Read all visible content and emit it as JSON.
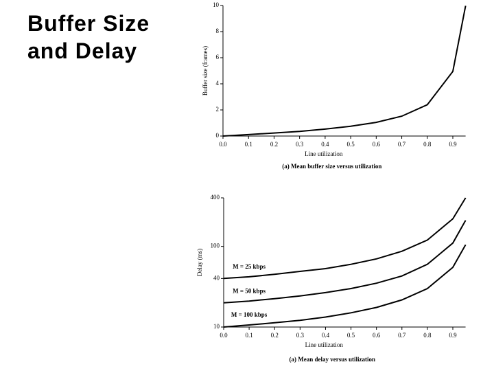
{
  "title": "Buffer Size and Delay",
  "chart_data": [
    {
      "type": "line",
      "y_label": "Buffer size (frames)",
      "x_label": "Line utilization",
      "caption": "(a) Mean buffer size versus utilization",
      "x": [
        0,
        0.1,
        0.2,
        0.3,
        0.4,
        0.5,
        0.6,
        0.7,
        0.8,
        0.9,
        0.95
      ],
      "series": [
        {
          "color": "#000000",
          "values": [
            0,
            0.11,
            0.23,
            0.36,
            0.53,
            0.75,
            1.05,
            1.52,
            2.4,
            4.95,
            9.98
          ]
        }
      ],
      "xlim": [
        0,
        0.95
      ],
      "xticks": [
        {
          "value": 0,
          "label": "0.0"
        },
        0.1,
        0.2,
        0.3,
        0.4,
        0.5,
        0.6,
        0.7,
        0.8,
        0.9
      ],
      "ylim": [
        0,
        10
      ],
      "yticks": [
        0,
        2,
        4,
        6,
        8,
        10
      ],
      "log_y": false
    },
    {
      "type": "line",
      "y_label": "Delay (ms)",
      "x_label": "Line utilization",
      "caption": "(a) Mean delay versus utilization",
      "x": [
        0,
        0.1,
        0.2,
        0.3,
        0.4,
        0.5,
        0.6,
        0.7,
        0.8,
        0.9,
        0.95
      ],
      "series": [
        {
          "name": "M = 25 kbps",
          "color": "#000000",
          "values": [
            40,
            42,
            45,
            49,
            53,
            60,
            70,
            87,
            120,
            220,
            400
          ]
        },
        {
          "name": "M = 50 kbps",
          "color": "#000000",
          "values": [
            20,
            21,
            22.5,
            24.3,
            26.7,
            30,
            35,
            43,
            60,
            110,
            210
          ]
        },
        {
          "name": "M = 100 kbps",
          "color": "#000000",
          "values": [
            10,
            10.6,
            11.3,
            12.1,
            13.3,
            15,
            17.5,
            21.7,
            30,
            55,
            105
          ]
        }
      ],
      "xlim": [
        0,
        0.95
      ],
      "xticks": [
        {
          "value": 0,
          "label": "0.0"
        },
        0.1,
        0.2,
        0.3,
        0.4,
        0.5,
        0.6,
        0.7,
        0.8,
        0.9
      ],
      "ylim": [
        10,
        400
      ],
      "yticks": [
        10,
        40,
        100,
        400
      ],
      "log_y": true
    }
  ]
}
